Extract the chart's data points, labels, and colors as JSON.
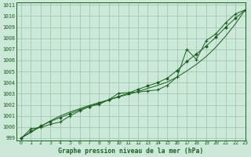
{
  "title": "Graphe pression niveau de la mer (hPa)",
  "bg_color": "#cce8d8",
  "grid_color": "#99c4aa",
  "line_color": "#1a6020",
  "xlim": [
    -0.5,
    23
  ],
  "ylim": [
    998.8,
    1011.2
  ],
  "xticks": [
    0,
    1,
    2,
    3,
    4,
    5,
    6,
    7,
    8,
    9,
    10,
    11,
    12,
    13,
    14,
    15,
    16,
    17,
    18,
    19,
    20,
    21,
    22,
    23
  ],
  "yticks": [
    999,
    1000,
    1001,
    1002,
    1003,
    1004,
    1005,
    1006,
    1007,
    1008,
    1009,
    1010,
    1011
  ],
  "x_data": [
    0,
    1,
    2,
    3,
    4,
    5,
    6,
    7,
    8,
    9,
    10,
    11,
    12,
    13,
    14,
    15,
    16,
    17,
    18,
    19,
    20,
    21,
    22,
    23
  ],
  "y_actual": [
    999.0,
    999.85,
    999.95,
    1000.25,
    1000.45,
    1001.0,
    1001.45,
    1001.85,
    1002.05,
    1002.45,
    1003.05,
    1003.1,
    1003.15,
    1003.25,
    1003.35,
    1003.75,
    1004.5,
    1007.0,
    1006.1,
    1007.8,
    1008.4,
    1009.4,
    1010.2,
    1010.55
  ],
  "y_smooth": [
    999.0,
    999.6,
    1000.1,
    1000.5,
    1000.85,
    1001.2,
    1001.55,
    1001.85,
    1002.15,
    1002.45,
    1002.75,
    1003.05,
    1003.4,
    1003.7,
    1004.0,
    1004.4,
    1005.1,
    1005.9,
    1006.6,
    1007.3,
    1008.1,
    1009.0,
    1009.8,
    1010.55
  ],
  "y_linear": [
    999.0,
    999.52,
    1000.04,
    1000.56,
    1001.0,
    1001.35,
    1001.65,
    1001.95,
    1002.2,
    1002.45,
    1002.7,
    1002.95,
    1003.2,
    1003.48,
    1003.75,
    1004.05,
    1004.5,
    1005.05,
    1005.65,
    1006.35,
    1007.2,
    1008.2,
    1009.3,
    1010.55
  ],
  "title_fontsize": 5.8,
  "tick_fontsize": 4.8
}
